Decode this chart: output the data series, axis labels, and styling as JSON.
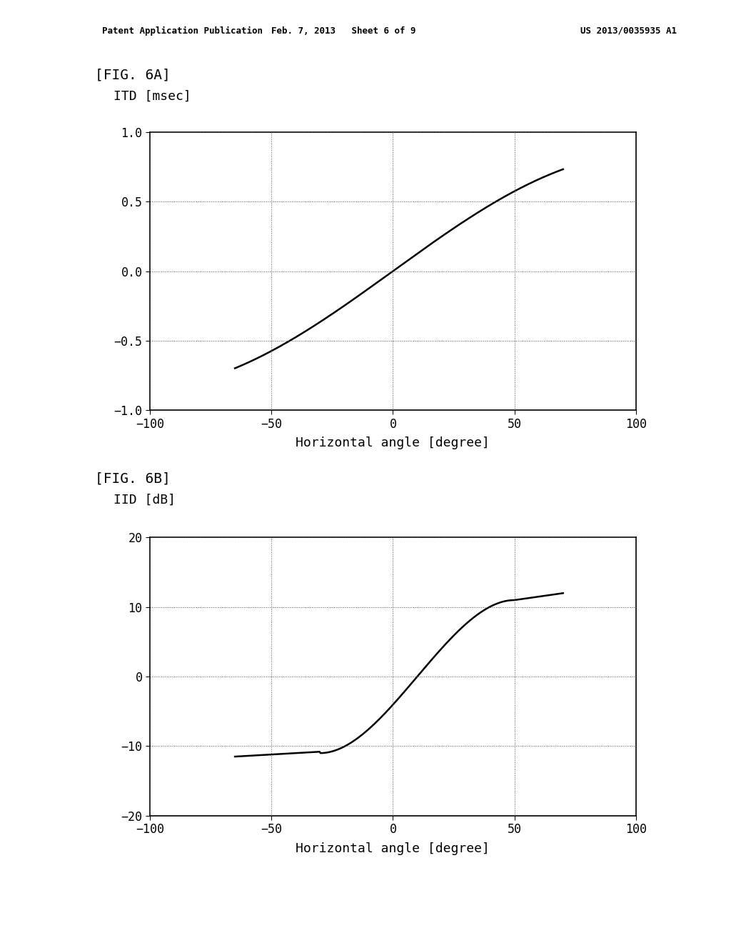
{
  "fig_width": 10.24,
  "fig_height": 13.2,
  "background_color": "#ffffff",
  "header_left": "Patent Application Publication",
  "header_mid": "Feb. 7, 2013   Sheet 6 of 9",
  "header_right": "US 2013/0035935 A1",
  "fig6a_label": "[FIG. 6A]",
  "fig6a_ylabel": "ITD [msec]",
  "fig6a_xlabel": "Horizontal angle [degree]",
  "fig6a_xlim": [
    -100,
    100
  ],
  "fig6a_ylim": [
    -1,
    1
  ],
  "fig6a_xticks": [
    -100,
    -50,
    0,
    50,
    100
  ],
  "fig6a_yticks": [
    -1,
    -0.5,
    0,
    0.5,
    1
  ],
  "fig6b_label": "[FIG. 6B]",
  "fig6b_ylabel": "IID [dB]",
  "fig6b_xlabel": "Horizontal angle [degree]",
  "fig6b_xlim": [
    -100,
    100
  ],
  "fig6b_ylim": [
    -20,
    20
  ],
  "fig6b_xticks": [
    -100,
    -50,
    0,
    50,
    100
  ],
  "fig6b_yticks": [
    -20,
    -10,
    0,
    10,
    20
  ],
  "line_color": "#000000",
  "line_width": 1.8,
  "grid_color": "#555555",
  "grid_linestyle": ":",
  "grid_linewidth": 0.7,
  "tick_fontsize": 12,
  "label_fontsize": 13,
  "fig_label_fontsize": 14
}
